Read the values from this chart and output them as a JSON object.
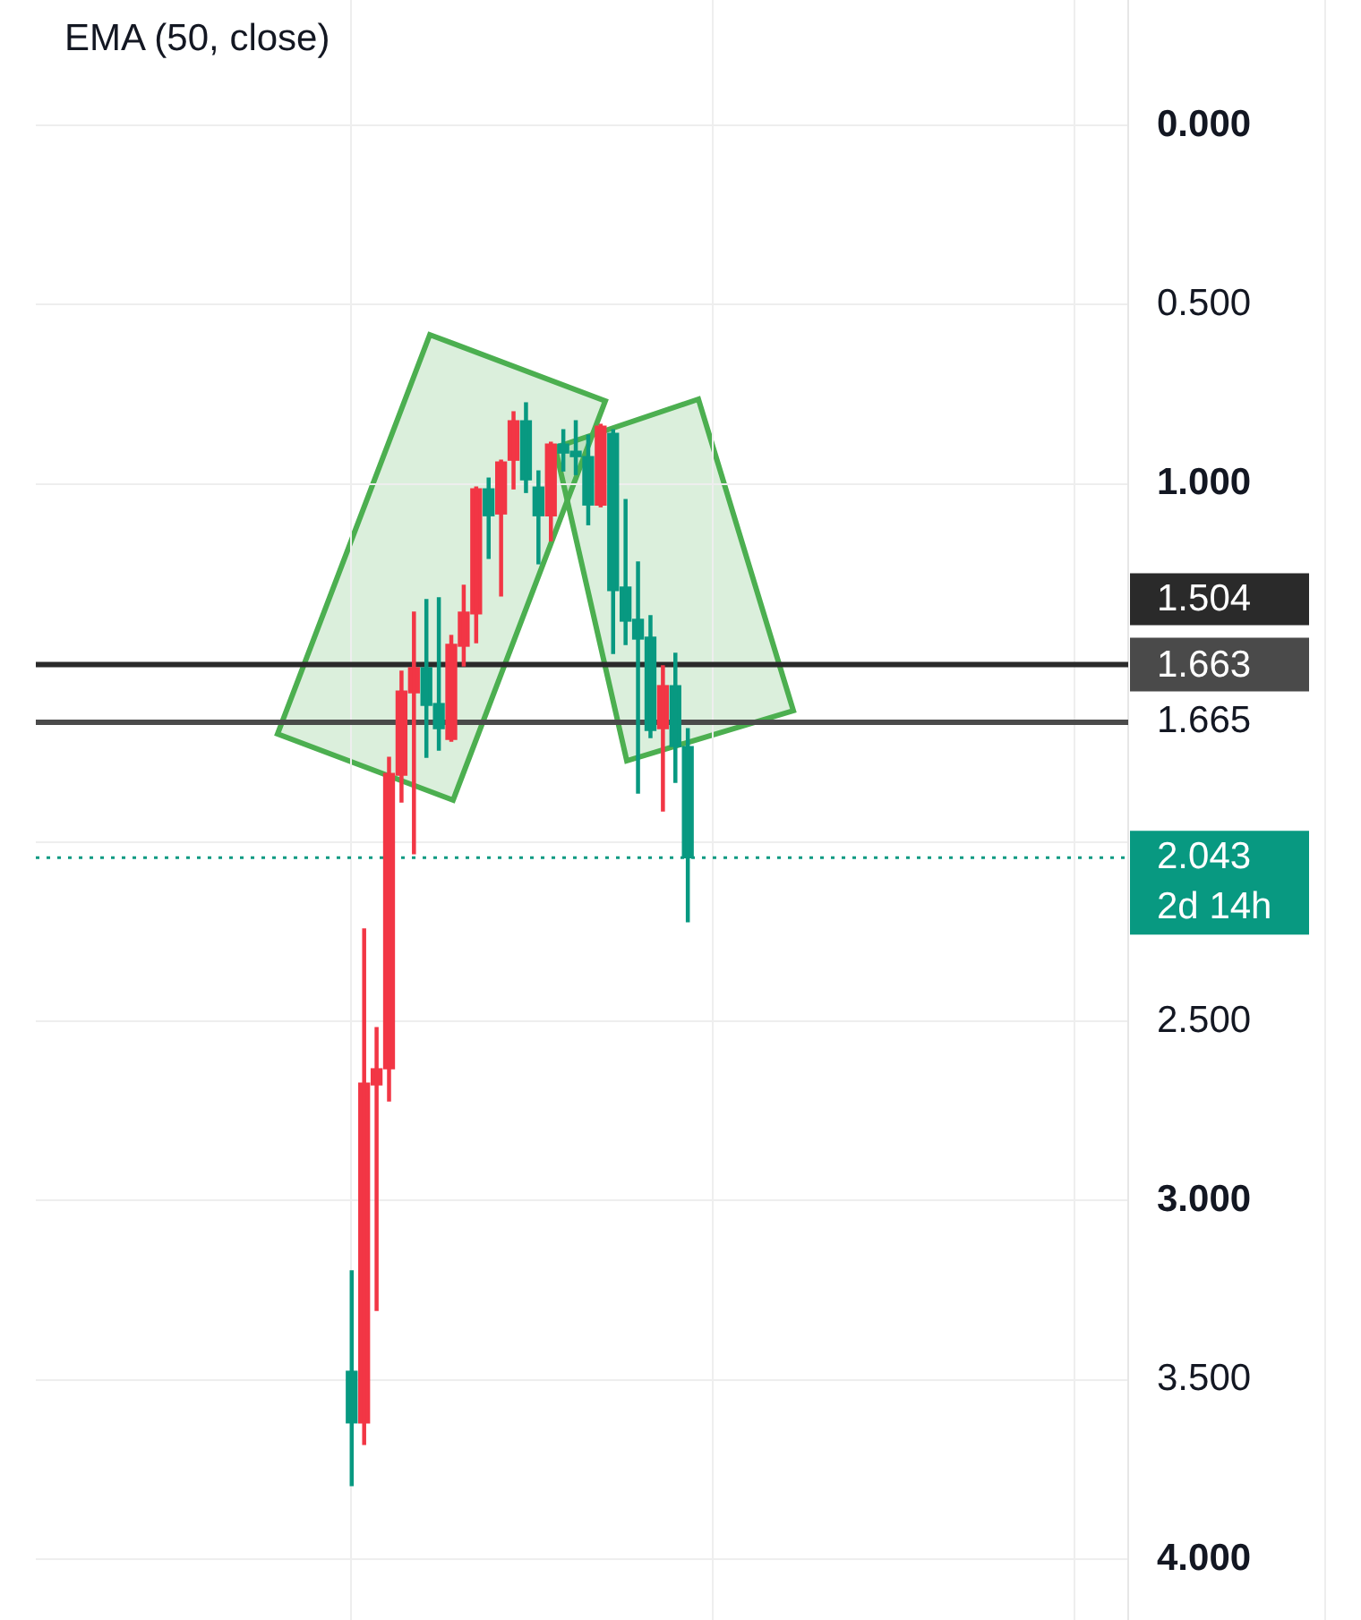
{
  "chart_data": {
    "type": "candlestick",
    "categories": [
      null,
      null,
      null,
      null,
      null,
      null,
      null,
      null,
      null,
      null,
      null,
      null,
      null,
      null,
      null,
      null,
      null,
      null,
      null,
      null,
      null,
      null,
      null,
      null,
      null,
      null,
      null,
      null,
      null,
      null,
      null,
      null,
      null,
      null,
      null,
      null,
      null,
      null,
      null,
      null,
      null,
      null,
      null,
      null,
      null,
      null,
      null,
      null,
      null,
      null,
      null,
      null,
      null,
      null,
      null,
      null,
      null,
      null,
      null,
      null,
      null,
      null,
      null,
      null,
      null,
      null,
      null,
      null,
      null,
      null,
      null,
      null,
      null,
      null,
      null,
      null,
      null,
      null
    ],
    "ohlc": [
      null,
      null,
      null,
      null,
      null,
      null,
      null,
      null,
      null,
      null,
      null,
      null,
      null,
      null,
      null,
      null,
      null,
      null,
      null,
      null,
      [
        3.476,
        3.795,
        3.196,
        3.62
      ],
      [
        3.62,
        3.68,
        2.242,
        2.672
      ],
      [
        2.677,
        3.306,
        2.517,
        2.632
      ],
      [
        2.632,
        2.722,
        1.763,
        1.808
      ],
      [
        1.813,
        1.888,
        1.523,
        1.578
      ],
      [
        1.583,
        2.032,
        1.358,
        1.513
      ],
      [
        1.513,
        1.763,
        1.323,
        1.618
      ],
      [
        1.613,
        1.743,
        1.318,
        1.683
      ],
      [
        1.713,
        1.718,
        1.423,
        1.448
      ],
      [
        1.453,
        1.508,
        1.283,
        1.358
      ],
      [
        1.363,
        1.443,
        1.009,
        1.014
      ],
      [
        1.014,
        1.208,
        0.984,
        1.089
      ],
      [
        1.084,
        1.313,
        0.934,
        0.939
      ],
      [
        0.934,
        1.014,
        0.799,
        0.824
      ],
      [
        0.824,
        1.024,
        0.774,
        0.989
      ],
      [
        1.009,
        1.223,
        0.964,
        1.089
      ],
      [
        1.089,
        1.159,
        0.884,
        0.889
      ],
      [
        0.889,
        0.964,
        0.849,
        0.914
      ],
      [
        0.909,
        0.974,
        0.824,
        0.924
      ],
      [
        0.924,
        1.114,
        0.864,
        1.059
      ],
      [
        1.059,
        1.064,
        0.834,
        0.839
      ],
      [
        0.859,
        1.473,
        0.849,
        1.298
      ],
      [
        1.288,
        1.448,
        1.044,
        1.383
      ],
      [
        1.378,
        1.863,
        1.218,
        1.433
      ],
      [
        1.428,
        1.708,
        1.368,
        1.688
      ],
      [
        1.683,
        1.913,
        1.508,
        1.563
      ],
      [
        1.563,
        1.833,
        1.473,
        1.733
      ],
      [
        1.733,
        2.222,
        1.683,
        2.043
      ],
      null,
      null,
      null,
      null,
      null,
      null,
      null,
      null,
      null,
      null,
      null,
      null,
      null,
      null,
      null,
      null,
      null,
      null,
      null,
      null,
      null,
      null,
      null,
      null,
      null,
      null,
      null,
      null,
      null,
      null
    ],
    "colors": [
      null,
      null,
      null,
      null,
      null,
      null,
      null,
      null,
      null,
      null,
      null,
      null,
      null,
      null,
      null,
      null,
      null,
      null,
      null,
      null,
      "#089981",
      "#f23645",
      "#f23645",
      "#f23645",
      "#f23645",
      "#f23645",
      "#089981",
      "#089981",
      "#f23645",
      "#f23645",
      "#f23645",
      "#089981",
      "#f23645",
      "#f23645",
      "#089981",
      "#089981",
      "#f23645",
      "#089981",
      "#089981",
      "#089981",
      "#f23645",
      "#089981",
      "#089981",
      "#089981",
      "#089981",
      "#f23645",
      "#089981",
      "#089981",
      null,
      null,
      null,
      null,
      null,
      null,
      null,
      null,
      null,
      null,
      null,
      null,
      null,
      null,
      null,
      null,
      null,
      null,
      null,
      null,
      null,
      null,
      null,
      null,
      null,
      null,
      null,
      null,
      null,
      null
    ],
    "ylim": [
      4.17,
      -0.35
    ],
    "yticks": [
      {
        "value": 0,
        "label": "0.000"
      },
      {
        "value": 0.5,
        "label": "0.500"
      },
      {
        "value": 1,
        "label": "1.000"
      },
      {
        "value": 1.5,
        "label": null
      },
      {
        "value": 2,
        "label": null
      },
      {
        "value": 2.5,
        "label": "2.500"
      },
      {
        "value": 3,
        "label": "3.000"
      },
      {
        "value": 3.5,
        "label": "3.500"
      },
      {
        "value": 4,
        "label": "4.000"
      }
    ],
    "grid": true,
    "legend": false,
    "ref_lines": [
      {
        "axis": "y",
        "value": 1.504,
        "label": "1.504",
        "color": "#2a2a2a"
      },
      {
        "axis": "y",
        "value": 1.665,
        "label": "1.665",
        "color": "#4a4a4a"
      },
      {
        "axis": "y",
        "value": 2.043,
        "label": "2.043\n2d 14h",
        "color": "#089981",
        "line_style": "dotted"
      }
    ],
    "annotations": [
      "EMA (50, close)",
      "1.663"
    ]
  }
}
